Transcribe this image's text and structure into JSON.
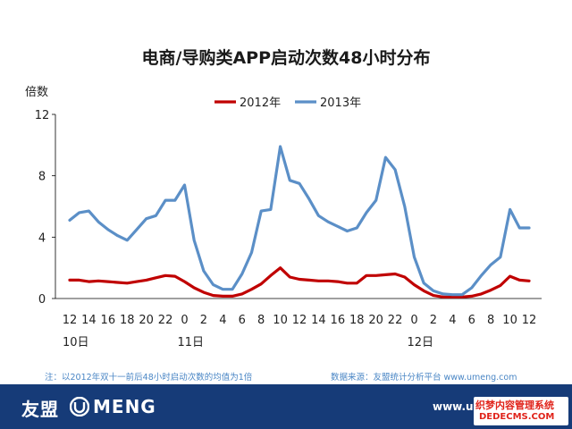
{
  "page": {
    "footnote_left": "注：以2012年双十一前后48小时启动次数的均值为1倍",
    "footnote_right": "数据来源：友盟统计分析平台 www.umeng.com",
    "footer": {
      "logo_cn": "友盟",
      "logo_en": "MENG",
      "url": "www.u",
      "watermark_line1": "织梦内容管理系统",
      "watermark_line2": "DEDECMS.COM"
    },
    "colors": {
      "footer_bg": "#163b78",
      "series_2012": "#c00000",
      "series_2013": "#5b8fc7"
    }
  },
  "chart_data": {
    "type": "line",
    "title": "电商/导购类APP启动次数48小时分布",
    "ylabel": "倍数",
    "xlabel": "",
    "ylim": [
      0,
      12
    ],
    "yticks": [
      0,
      4,
      8,
      12
    ],
    "grid": false,
    "legend_position": "top-center",
    "x_tick_labels": [
      "12",
      "14",
      "16",
      "18",
      "20",
      "22",
      "0",
      "2",
      "4",
      "6",
      "8",
      "10",
      "12",
      "14",
      "16",
      "18",
      "20",
      "22",
      "0",
      "2",
      "4",
      "6",
      "8",
      "10",
      "12"
    ],
    "x_day_labels": [
      {
        "label": "10日",
        "at_index": 0
      },
      {
        "label": "11日",
        "at_index": 12
      },
      {
        "label": "12日",
        "at_index": 36
      }
    ],
    "series": [
      {
        "name": "2012年",
        "color": "#c00000",
        "values": [
          1.2,
          1.2,
          1.1,
          1.15,
          1.1,
          1.05,
          1.0,
          1.1,
          1.2,
          1.35,
          1.5,
          1.45,
          1.1,
          0.7,
          0.4,
          0.2,
          0.15,
          0.15,
          0.3,
          0.6,
          0.95,
          1.5,
          2.0,
          1.4,
          1.25,
          1.2,
          1.15,
          1.15,
          1.1,
          1.0,
          1.0,
          1.5,
          1.5,
          1.55,
          1.6,
          1.4,
          0.9,
          0.5,
          0.2,
          0.1,
          0.1,
          0.1,
          0.15,
          0.3,
          0.55,
          0.85,
          1.45,
          1.2,
          1.15
        ]
      },
      {
        "name": "2013年",
        "color": "#5b8fc7",
        "values": [
          5.1,
          5.6,
          5.7,
          5.0,
          4.5,
          4.1,
          3.8,
          4.5,
          5.2,
          5.4,
          6.4,
          6.4,
          7.4,
          3.8,
          1.8,
          0.9,
          0.6,
          0.6,
          1.6,
          3.0,
          5.7,
          5.8,
          9.9,
          7.7,
          7.5,
          6.5,
          5.4,
          5.0,
          4.7,
          4.4,
          4.6,
          5.6,
          6.4,
          9.2,
          8.4,
          6.0,
          2.7,
          1.0,
          0.5,
          0.3,
          0.25,
          0.25,
          0.7,
          1.5,
          2.2,
          2.7,
          5.8,
          4.6,
          4.6
        ]
      }
    ]
  }
}
